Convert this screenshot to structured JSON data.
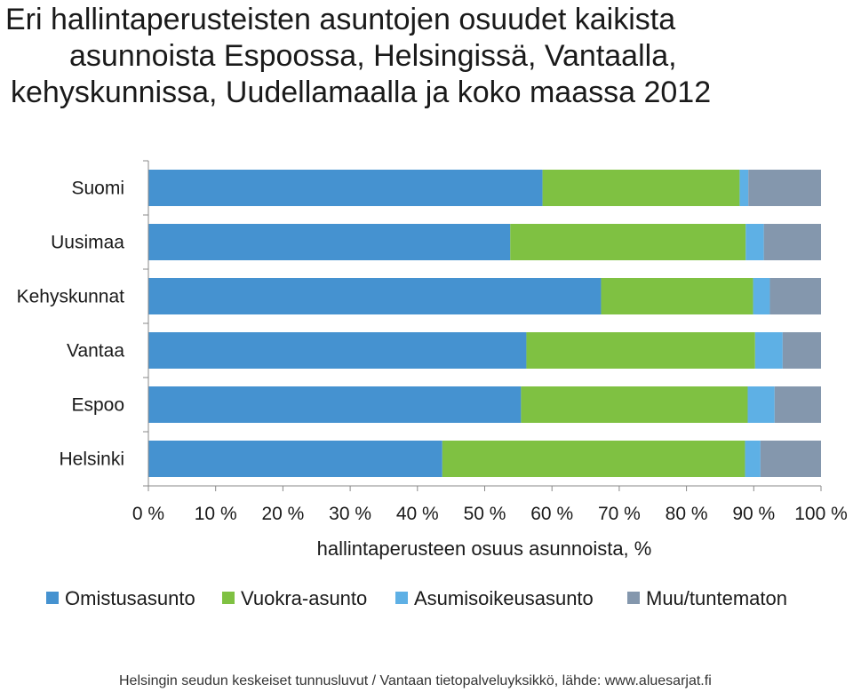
{
  "chart_data": {
    "type": "bar",
    "orientation": "horizontal",
    "stacked": "percent",
    "title_lines": [
      "Eri hallintaperusteisten asuntojen osuudet kaikista",
      "asunnoista Espoossa, Helsingissä, Vantaalla,",
      "kehyskunnissa, Uudellamaalla ja koko maassa 2012"
    ],
    "categories": [
      "Suomi",
      "Uusimaa",
      "Kehyskunnat",
      "Vantaa",
      "Espoo",
      "Helsinki"
    ],
    "series": [
      {
        "name": "Omistusasunto",
        "color": "#4592d0",
        "values": [
          58.6,
          53.8,
          67.3,
          56.2,
          55.4,
          43.7
        ]
      },
      {
        "name": "Vuokra-asunto",
        "color": "#7fc142",
        "values": [
          29.3,
          35.0,
          22.6,
          34.0,
          33.7,
          45.0
        ]
      },
      {
        "name": "Asumisoikeusasunto",
        "color": "#5eb0e5",
        "values": [
          1.3,
          2.7,
          2.5,
          4.1,
          4.0,
          2.3
        ]
      },
      {
        "name": "Muu/tuntematon",
        "color": "#8497ad",
        "values": [
          10.8,
          8.5,
          7.6,
          5.7,
          6.9,
          9.0
        ]
      }
    ],
    "xlabel": "hallintaperusteen osuus asunnoista, %",
    "ylabel": "",
    "xlim": [
      0,
      100
    ],
    "x_ticks": [
      "0 %",
      "10 %",
      "20 %",
      "30 %",
      "40 %",
      "50 %",
      "60 %",
      "70 %",
      "80 %",
      "90 %",
      "100 %"
    ],
    "grid": false,
    "legend_position": "bottom"
  },
  "footer": {
    "source": "Helsingin seudun keskeiset tunnusluvut / Vantaan tietopalveluyksikkö, lähde: www.aluesarjat.fi"
  }
}
